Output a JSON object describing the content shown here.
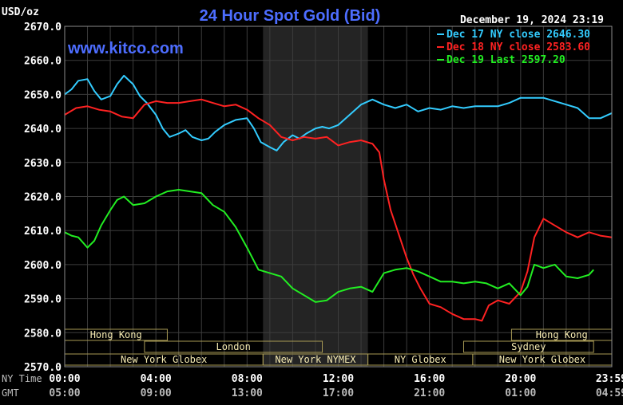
{
  "chart_data": {
    "type": "line",
    "title": "24 Hour Spot Gold (Bid)",
    "timestamp": "December 19, 2024 23:19",
    "website": "www.kitco.com",
    "ylabel": "USD/oz",
    "ylim": [
      2570,
      2670
    ],
    "yticks": [
      "2670.0",
      "2660.0",
      "2650.0",
      "2640.0",
      "2630.0",
      "2620.0",
      "2610.0",
      "2600.0",
      "2590.0",
      "2580.0",
      "2570.0"
    ],
    "xlim": [
      0,
      24
    ],
    "grid": true,
    "legend_position": "top-right",
    "time_rows": [
      {
        "label": "NY Time",
        "ticks": [
          "00:00",
          "04:00",
          "08:00",
          "12:00",
          "16:00",
          "20:00",
          "23:59"
        ]
      },
      {
        "label": "GMT",
        "ticks": [
          "05:00",
          "09:00",
          "13:00",
          "17:00",
          "21:00",
          "01:00",
          "04:59"
        ]
      }
    ],
    "x_tick_hours": [
      0,
      4,
      8,
      12,
      16,
      20,
      23.98
    ],
    "shaded_session": [
      8.7,
      13.3
    ],
    "sessions": [
      {
        "label": "Hong Kong",
        "start": 0,
        "end": 4.5,
        "row": 0
      },
      {
        "label": "Hong Kong",
        "start": 19.6,
        "end": 24,
        "row": 0
      },
      {
        "label": "London",
        "start": 3.5,
        "end": 11.3,
        "row": 1
      },
      {
        "label": "Sydney",
        "start": 17.5,
        "end": 23.2,
        "row": 1
      },
      {
        "label": "New York Globex",
        "start": 0,
        "end": 8.7,
        "row": 2
      },
      {
        "label": "New York NYMEX",
        "start": 8.7,
        "end": 13.3,
        "row": 2
      },
      {
        "label": "NY Globex",
        "start": 13.3,
        "end": 17.9,
        "row": 2
      },
      {
        "label": "New York Globex",
        "start": 17.9,
        "end": 24,
        "row": 2
      }
    ],
    "series": [
      {
        "name": "Dec 17 NY close 2646.30",
        "color": "#33ccff",
        "x": [
          0,
          0.3,
          0.6,
          1,
          1.3,
          1.6,
          2,
          2.3,
          2.6,
          3,
          3.3,
          3.6,
          4,
          4.3,
          4.6,
          5,
          5.3,
          5.6,
          6,
          6.3,
          6.6,
          7,
          7.5,
          8,
          8.3,
          8.6,
          9,
          9.3,
          9.6,
          10,
          10.3,
          10.6,
          11,
          11.3,
          11.6,
          12,
          12.5,
          13,
          13.5,
          14,
          14.5,
          15,
          15.5,
          16,
          16.5,
          17,
          17.5,
          18,
          18.5,
          19,
          19.5,
          20,
          20.5,
          21,
          21.5,
          22,
          22.5,
          23,
          23.5,
          24
        ],
        "values": [
          2650.0,
          2651.5,
          2654.0,
          2654.5,
          2651.0,
          2648.5,
          2649.5,
          2653.0,
          2655.5,
          2653.0,
          2649.5,
          2647.5,
          2644.0,
          2640.0,
          2637.5,
          2638.5,
          2639.5,
          2637.5,
          2636.5,
          2637.0,
          2639.0,
          2641.0,
          2642.5,
          2643.0,
          2640.0,
          2636.0,
          2634.5,
          2633.5,
          2636.0,
          2638.0,
          2637.0,
          2638.5,
          2640.0,
          2640.5,
          2640.0,
          2641.0,
          2644.0,
          2647.0,
          2648.5,
          2647.0,
          2646.0,
          2647.0,
          2645.0,
          2646.0,
          2645.5,
          2646.5,
          2646.0,
          2646.5,
          2646.5,
          2646.5,
          2647.5,
          2649.0,
          2649.0,
          2649.0,
          2648.0,
          2647.0,
          2646.0,
          2643.0,
          2643.0,
          2644.5
        ]
      },
      {
        "name": "Dec 18 NY close 2583.60",
        "color": "#ff2222",
        "x": [
          0,
          0.5,
          1,
          1.5,
          2,
          2.5,
          3,
          3.5,
          4,
          4.5,
          5,
          5.5,
          6,
          6.5,
          7,
          7.5,
          8,
          8.5,
          9,
          9.5,
          10,
          10.5,
          11,
          11.5,
          12,
          12.5,
          13,
          13.5,
          13.8,
          14,
          14.3,
          14.6,
          15,
          15.3,
          15.6,
          16,
          16.5,
          17,
          17.5,
          18,
          18.3,
          18.6,
          19,
          19.5,
          20,
          20.3,
          20.6,
          21,
          21.5,
          22,
          22.5,
          23,
          23.5,
          24
        ],
        "values": [
          2644.0,
          2646.0,
          2646.5,
          2645.5,
          2645.0,
          2643.5,
          2643.0,
          2647.0,
          2648.0,
          2647.5,
          2647.5,
          2648.0,
          2648.5,
          2647.5,
          2646.5,
          2647.0,
          2645.5,
          2643.0,
          2641.0,
          2637.5,
          2636.5,
          2637.5,
          2637.0,
          2637.5,
          2635.0,
          2636.0,
          2636.5,
          2635.5,
          2633.0,
          2625.0,
          2616.0,
          2610.0,
          2602.0,
          2597.0,
          2593.0,
          2588.5,
          2587.5,
          2585.5,
          2584.0,
          2584.0,
          2583.5,
          2588.0,
          2589.5,
          2588.5,
          2592.0,
          2598.0,
          2608.0,
          2613.5,
          2611.5,
          2609.5,
          2608.0,
          2609.5,
          2608.5,
          2608.0
        ]
      },
      {
        "name": "Dec 19 Last 2597.20",
        "color": "#22ee22",
        "x": [
          0,
          0.3,
          0.6,
          1,
          1.3,
          1.6,
          2,
          2.3,
          2.6,
          3,
          3.5,
          4,
          4.5,
          5,
          5.5,
          6,
          6.5,
          7,
          7.5,
          8,
          8.5,
          9,
          9.5,
          10,
          10.5,
          11,
          11.5,
          12,
          12.5,
          13,
          13.5,
          14,
          14.5,
          15,
          15.5,
          16,
          16.5,
          17,
          17.5,
          18,
          18.5,
          19,
          19.5,
          20,
          20.3,
          20.6,
          21,
          21.5,
          22,
          22.5,
          23,
          23.2
        ],
        "values": [
          2609.5,
          2608.5,
          2608.0,
          2605.0,
          2607.0,
          2611.5,
          2616.0,
          2619.0,
          2620.0,
          2617.5,
          2618.0,
          2620.0,
          2621.5,
          2622.0,
          2621.5,
          2621.0,
          2617.5,
          2615.5,
          2611.0,
          2605.0,
          2598.5,
          2597.5,
          2596.5,
          2593.0,
          2591.0,
          2589.0,
          2589.5,
          2592.0,
          2593.0,
          2593.5,
          2592.0,
          2597.5,
          2598.5,
          2599.0,
          2598.0,
          2596.5,
          2595.0,
          2595.0,
          2594.5,
          2595.0,
          2594.5,
          2593.0,
          2594.5,
          2591.0,
          2593.5,
          2600.0,
          2599.0,
          2600.0,
          2596.5,
          2596.0,
          2597.0,
          2598.5
        ]
      }
    ]
  }
}
